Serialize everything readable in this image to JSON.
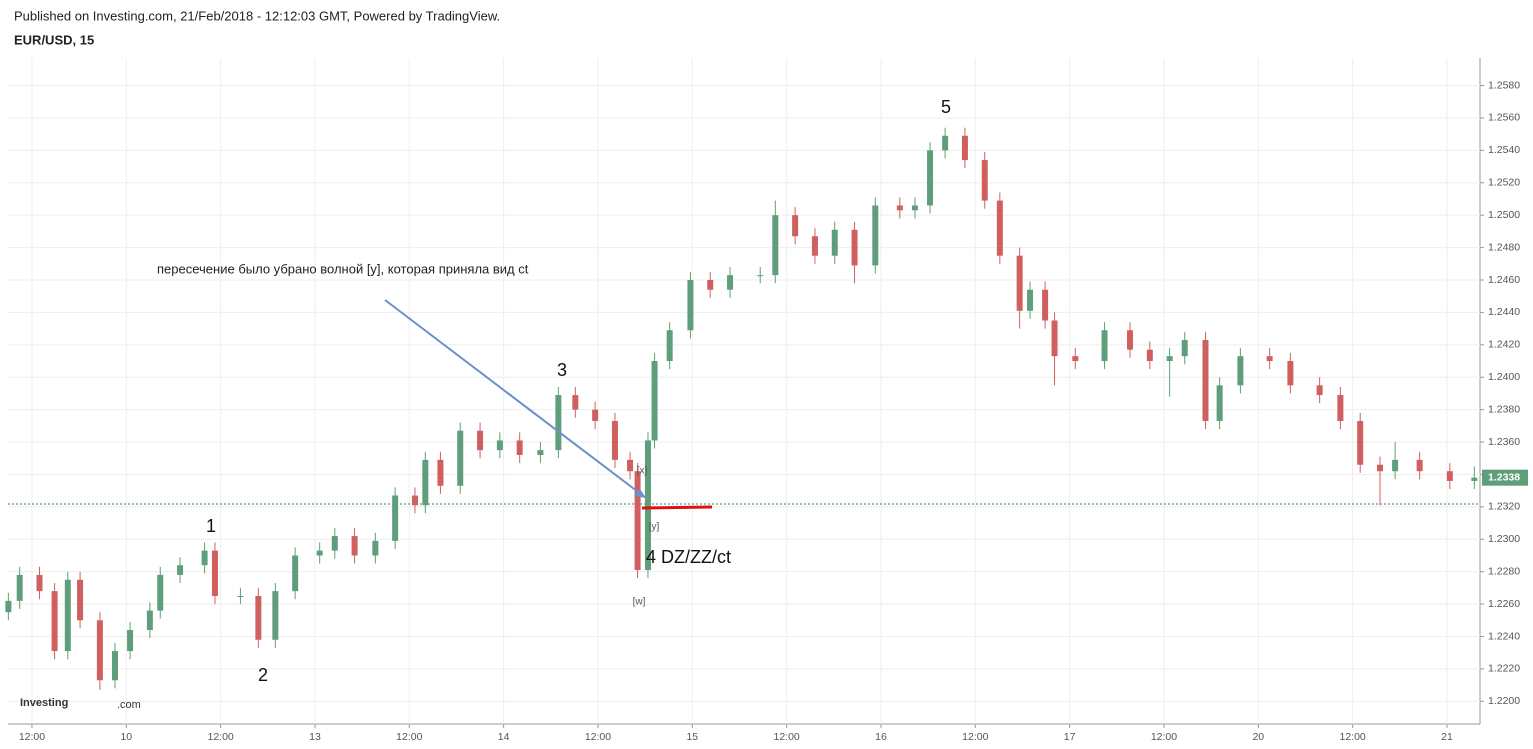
{
  "header": {
    "published": "Published on Investing.com, 21/Feb/2018 - 12:12:03 GMT, Powered by TradingView.",
    "symbol": "EUR/USD, 15"
  },
  "logo": [
    "Investing",
    ".com"
  ],
  "chart_data": {
    "type": "candlestick",
    "up_color": "#5f9e7a",
    "down_color": "#d06060",
    "grid": true,
    "x": [
      -0.25,
      -0.13,
      0.08,
      0.24,
      0.38,
      0.51,
      0.72,
      0.88,
      1.04,
      1.25,
      1.36,
      1.57,
      1.83,
      1.94,
      2.21,
      2.4,
      2.58,
      2.79,
      3.05,
      3.21,
      3.42,
      3.64,
      3.85,
      4.06,
      4.17,
      4.33,
      4.54,
      4.75,
      4.96,
      5.17,
      5.39,
      5.58,
      5.76,
      5.97,
      6.18,
      6.34,
      6.42,
      6.53,
      6.6,
      6.76,
      6.98,
      7.19,
      7.4,
      7.72,
      7.88,
      8.09,
      8.3,
      8.51,
      8.72,
      8.94,
      9.2,
      9.36,
      9.52,
      9.68,
      9.89,
      10.1,
      10.26,
      10.47,
      10.58,
      10.74,
      10.84,
      11.06,
      11.37,
      11.64,
      11.85,
      12.06,
      12.22,
      12.44,
      12.59,
      12.81,
      13.12,
      13.34,
      13.65,
      13.87,
      14.08,
      14.29,
      14.45,
      14.71,
      15.03,
      15.29
    ],
    "open": [
      1.2255,
      1.2262,
      1.2278,
      1.2268,
      1.2231,
      1.2275,
      1.225,
      1.2213,
      1.2231,
      1.2244,
      1.2256,
      1.2278,
      1.2284,
      1.2293,
      1.2265,
      1.2265,
      1.2238,
      1.2268,
      1.229,
      1.2293,
      1.2302,
      1.229,
      1.2299,
      1.2327,
      1.2321,
      1.2349,
      1.2333,
      1.2367,
      1.2355,
      1.2361,
      1.2352,
      1.2355,
      1.2389,
      1.238,
      1.2373,
      1.2349,
      1.2342,
      1.2281,
      1.2361,
      1.241,
      1.2429,
      1.246,
      1.2454,
      1.2463,
      1.2463,
      1.25,
      1.2487,
      1.2475,
      1.2491,
      1.2469,
      1.2506,
      1.2503,
      1.2506,
      1.254,
      1.2549,
      1.2534,
      1.2509,
      1.2475,
      1.2441,
      1.2454,
      1.2435,
      1.2413,
      1.241,
      1.2429,
      1.2417,
      1.241,
      1.2413,
      1.2423,
      1.2373,
      1.2395,
      1.2413,
      1.241,
      1.2395,
      1.2389,
      1.2373,
      1.2346,
      1.2342,
      1.2349,
      1.2342,
      1.2336
    ],
    "high": [
      1.2267,
      1.2283,
      1.2283,
      1.2273,
      1.228,
      1.228,
      1.2255,
      1.2236,
      1.2249,
      1.2261,
      1.2283,
      1.2289,
      1.2298,
      1.2298,
      1.227,
      1.227,
      1.2273,
      1.2295,
      1.2298,
      1.2307,
      1.2307,
      1.2304,
      1.2332,
      1.2332,
      1.2354,
      1.2354,
      1.2372,
      1.2372,
      1.2366,
      1.2366,
      1.236,
      1.2394,
      1.2394,
      1.2385,
      1.2378,
      1.2354,
      1.2347,
      1.2366,
      1.2415,
      1.2434,
      1.2465,
      1.2465,
      1.2468,
      1.2468,
      1.2509,
      1.2505,
      1.2492,
      1.2496,
      1.2496,
      1.2511,
      1.2511,
      1.2511,
      1.2545,
      1.2554,
      1.2554,
      1.2539,
      1.2514,
      1.248,
      1.2459,
      1.2459,
      1.244,
      1.2418,
      1.2434,
      1.2434,
      1.2422,
      1.2418,
      1.2428,
      1.2428,
      1.24,
      1.2418,
      1.2418,
      1.2415,
      1.24,
      1.2394,
      1.2378,
      1.2351,
      1.236,
      1.2354,
      1.2347,
      1.2345
    ],
    "low": [
      1.225,
      1.2257,
      1.2263,
      1.2226,
      1.2226,
      1.2245,
      1.2207,
      1.2208,
      1.2226,
      1.2239,
      1.2251,
      1.2273,
      1.2279,
      1.226,
      1.226,
      1.2233,
      1.2233,
      1.2263,
      1.2285,
      1.2288,
      1.2285,
      1.2285,
      1.2294,
      1.2316,
      1.2316,
      1.2328,
      1.2328,
      1.235,
      1.235,
      1.2347,
      1.2347,
      1.235,
      1.2375,
      1.2368,
      1.2344,
      1.2337,
      1.2276,
      1.2276,
      1.2356,
      1.2405,
      1.2424,
      1.2449,
      1.2449,
      1.2458,
      1.2458,
      1.2482,
      1.247,
      1.247,
      1.2458,
      1.2464,
      1.2498,
      1.2498,
      1.2501,
      1.2535,
      1.2529,
      1.2504,
      1.247,
      1.243,
      1.2436,
      1.243,
      1.2395,
      1.2405,
      1.2405,
      1.2412,
      1.2405,
      1.2388,
      1.2408,
      1.2368,
      1.2368,
      1.239,
      1.2405,
      1.239,
      1.2384,
      1.2368,
      1.2341,
      1.2321,
      1.2337,
      1.2337,
      1.2331,
      1.2331
    ],
    "close": [
      1.2262,
      1.2278,
      1.2268,
      1.2231,
      1.2275,
      1.225,
      1.2213,
      1.2231,
      1.2244,
      1.2256,
      1.2278,
      1.2284,
      1.2293,
      1.2265,
      1.2265,
      1.2238,
      1.2268,
      1.229,
      1.2293,
      1.2302,
      1.229,
      1.2299,
      1.2327,
      1.2321,
      1.2349,
      1.2333,
      1.2367,
      1.2355,
      1.2361,
      1.2352,
      1.2355,
      1.2389,
      1.238,
      1.2373,
      1.2349,
      1.2342,
      1.2281,
      1.2361,
      1.241,
      1.2429,
      1.246,
      1.2454,
      1.2463,
      1.2463,
      1.25,
      1.2487,
      1.2475,
      1.2491,
      1.2469,
      1.2506,
      1.2503,
      1.2506,
      1.254,
      1.2549,
      1.2534,
      1.2509,
      1.2475,
      1.2441,
      1.2454,
      1.2435,
      1.2413,
      1.241,
      1.2429,
      1.2417,
      1.241,
      1.2413,
      1.2423,
      1.2373,
      1.2395,
      1.2413,
      1.241,
      1.2395,
      1.2389,
      1.2373,
      1.2346,
      1.2342,
      1.2349,
      1.2342,
      1.2336,
      1.2338
    ],
    "xlim": [
      -0.254,
      15.35
    ],
    "xticks": [
      {
        "value": 0,
        "label": "12:00"
      },
      {
        "value": 1,
        "label": "10"
      },
      {
        "value": 2,
        "label": "12:00"
      },
      {
        "value": 3,
        "label": "13"
      },
      {
        "value": 4,
        "label": "12:00"
      },
      {
        "value": 5,
        "label": "14"
      },
      {
        "value": 6,
        "label": "12:00"
      },
      {
        "value": 7,
        "label": "15"
      },
      {
        "value": 8,
        "label": "12:00"
      },
      {
        "value": 9,
        "label": "16"
      },
      {
        "value": 10,
        "label": "12:00"
      },
      {
        "value": 11,
        "label": "17"
      },
      {
        "value": 12,
        "label": "12:00"
      },
      {
        "value": 13,
        "label": "20"
      },
      {
        "value": 14,
        "label": "12:00"
      },
      {
        "value": 15,
        "label": "21"
      }
    ],
    "ylim": [
      1.2186,
      1.2597
    ],
    "yticks": [
      {
        "value": 1.22,
        "label": "1.2200"
      },
      {
        "value": 1.222,
        "label": "1.2220"
      },
      {
        "value": 1.224,
        "label": "1.2240"
      },
      {
        "value": 1.226,
        "label": "1.2260"
      },
      {
        "value": 1.228,
        "label": "1.2280"
      },
      {
        "value": 1.23,
        "label": "1.2300"
      },
      {
        "value": 1.232,
        "label": "1.2320"
      },
      {
        "value": 1.234,
        "label": "1.2340"
      },
      {
        "value": 1.236,
        "label": "1.2360"
      },
      {
        "value": 1.238,
        "label": "1.2380"
      },
      {
        "value": 1.24,
        "label": "1.2400"
      },
      {
        "value": 1.242,
        "label": "1.2420"
      },
      {
        "value": 1.244,
        "label": "1.2440"
      },
      {
        "value": 1.246,
        "label": "1.2460"
      },
      {
        "value": 1.248,
        "label": "1.2480"
      },
      {
        "value": 1.25,
        "label": "1.2500"
      },
      {
        "value": 1.252,
        "label": "1.2520"
      },
      {
        "value": 1.254,
        "label": "1.2540"
      },
      {
        "value": 1.256,
        "label": "1.2560"
      },
      {
        "value": 1.258,
        "label": "1.2580"
      }
    ],
    "last_price": {
      "value": 1.2338,
      "label": "1.2338"
    },
    "annotations": [
      "пересечение было убрано волной [y], которая приняла вид ct",
      "1",
      "2",
      "3",
      "5",
      "[x]",
      "[y]",
      "[w]",
      "4 DZ/ZZ/ct"
    ]
  }
}
